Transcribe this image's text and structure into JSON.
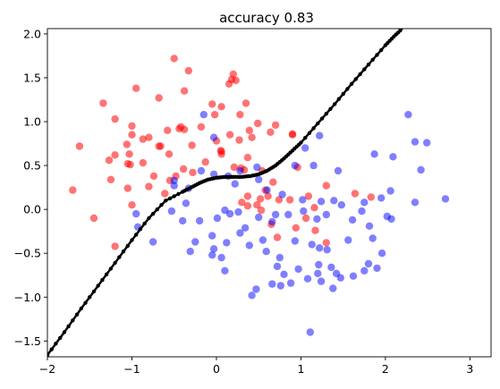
{
  "chart_data": {
    "type": "scatter",
    "title": "accuracy 0.83",
    "xlabel": "",
    "ylabel": "",
    "xlim": [
      -2.0,
      3.25
    ],
    "ylim": [
      -1.68,
      2.06
    ],
    "x_ticks": [
      -2,
      -1,
      0,
      1,
      2,
      3
    ],
    "x_tick_labels": [
      "−2",
      "−1",
      "0",
      "1",
      "2",
      "3"
    ],
    "y_ticks": [
      -1.5,
      -1.0,
      -0.5,
      0.0,
      0.5,
      1.0,
      1.5,
      2.0
    ],
    "y_tick_labels": [
      "−1.5",
      "−1.0",
      "−0.5",
      "0.0",
      "0.5",
      "1.0",
      "1.5",
      "2.0"
    ],
    "grid": false,
    "legend": "none",
    "series": [
      {
        "color": "#ff0000",
        "alpha": 0.55,
        "points": [
          [
            -0.5,
            1.72
          ],
          [
            -0.33,
            1.58
          ],
          [
            0.2,
            1.54
          ],
          [
            0.18,
            1.48
          ],
          [
            0.23,
            1.47
          ],
          [
            0.15,
            1.43
          ],
          [
            -0.95,
            1.38
          ],
          [
            -0.38,
            1.35
          ],
          [
            -0.68,
            1.27
          ],
          [
            -1.34,
            1.21
          ],
          [
            -0.05,
            1.2
          ],
          [
            0.35,
            1.21
          ],
          [
            0.06,
            1.17
          ],
          [
            0.28,
            1.08
          ],
          [
            -0.02,
            1.08
          ],
          [
            -1.2,
            1.03
          ],
          [
            -0.42,
            0.94
          ],
          [
            -1.0,
            0.95
          ],
          [
            -0.58,
            0.9
          ],
          [
            -0.8,
            0.82
          ],
          [
            -0.87,
            0.8
          ],
          [
            -1.06,
            0.74
          ],
          [
            -0.68,
            0.72
          ],
          [
            -0.38,
            0.91
          ],
          [
            -0.44,
            0.92
          ],
          [
            -0.18,
            0.94
          ],
          [
            -1.0,
            0.85
          ],
          [
            0.16,
            0.85
          ],
          [
            0.42,
            0.82
          ],
          [
            0.27,
            0.79
          ],
          [
            0.49,
            0.98
          ],
          [
            0.9,
            0.85
          ],
          [
            -0.0,
            0.78
          ],
          [
            0.06,
            0.66
          ],
          [
            0.37,
            0.59
          ],
          [
            0.33,
            0.45
          ],
          [
            0.21,
            0.48
          ],
          [
            0.39,
            0.9
          ],
          [
            -1.27,
            0.56
          ],
          [
            -1.2,
            0.62
          ],
          [
            -1.02,
            0.51
          ],
          [
            -1.05,
            0.52
          ],
          [
            -0.87,
            0.53
          ],
          [
            -0.56,
            0.63
          ],
          [
            -0.66,
            0.72
          ],
          [
            -1.03,
            0.63
          ],
          [
            -0.29,
            0.73
          ],
          [
            -0.13,
            0.54
          ],
          [
            0.06,
            0.63
          ],
          [
            0.05,
            0.67
          ],
          [
            0.64,
            0.88
          ],
          [
            0.7,
            0.96
          ],
          [
            0.9,
            0.86
          ],
          [
            0.29,
            0.47
          ],
          [
            0.54,
            0.44
          ],
          [
            0.61,
            0.15
          ],
          [
            0.37,
            0.04
          ],
          [
            0.48,
            0.05
          ],
          [
            0.52,
            0.12
          ],
          [
            0.37,
            0.15
          ],
          [
            0.3,
            0.08
          ],
          [
            0.96,
            0.48
          ],
          [
            0.87,
            0.11
          ],
          [
            0.74,
            0.11
          ],
          [
            0.67,
            0.31
          ],
          [
            -0.55,
            0.33
          ],
          [
            -0.39,
            0.46
          ],
          [
            -0.48,
            0.38
          ],
          [
            -0.28,
            0.42
          ],
          [
            -0.74,
            0.38
          ],
          [
            -0.8,
            0.26
          ],
          [
            -0.61,
            0.18
          ],
          [
            -1.0,
            0.05
          ],
          [
            -1.25,
            0.34
          ],
          [
            -1.62,
            0.72
          ],
          [
            -1.7,
            0.22
          ],
          [
            -1.45,
            -0.1
          ],
          [
            -1.2,
            -0.42
          ],
          [
            -1.05,
            0.24
          ],
          [
            0.65,
            -0.17
          ],
          [
            0.72,
            -0.32
          ],
          [
            0.94,
            -0.21
          ],
          [
            1.06,
            -0.1
          ],
          [
            1.17,
            -0.24
          ],
          [
            1.3,
            -0.38
          ],
          [
            1.09,
            0.15
          ],
          [
            1.16,
            0.02
          ],
          [
            1.3,
            0.27
          ],
          [
            1.64,
            0.18
          ],
          [
            1.83,
            0.14
          ],
          [
            0.53,
            -0.01
          ],
          [
            0.58,
            0.22
          ]
        ]
      },
      {
        "color": "#0000ff",
        "alpha": 0.5,
        "points": [
          [
            -0.15,
            1.08
          ],
          [
            -0.03,
            0.82
          ],
          [
            1.22,
            0.84
          ],
          [
            1.05,
            0.7
          ],
          [
            2.27,
            1.08
          ],
          [
            2.35,
            0.77
          ],
          [
            2.49,
            0.76
          ],
          [
            1.87,
            0.63
          ],
          [
            2.09,
            0.6
          ],
          [
            2.42,
            0.45
          ],
          [
            1.44,
            0.44
          ],
          [
            1.15,
            0.5
          ],
          [
            0.93,
            0.5
          ],
          [
            0.48,
            0.48
          ],
          [
            0.28,
            0.44
          ],
          [
            0.14,
            0.38
          ],
          [
            -0.18,
            0.44
          ],
          [
            -0.5,
            0.33
          ],
          [
            -0.03,
            0.4
          ],
          [
            -0.33,
            0.24
          ],
          [
            -0.5,
            0.27
          ],
          [
            0.22,
            0.29
          ],
          [
            0.6,
            0.22
          ],
          [
            0.78,
            0.17
          ],
          [
            1.02,
            0.11
          ],
          [
            1.24,
            0.09
          ],
          [
            1.39,
            0.1
          ],
          [
            1.48,
            0.05
          ],
          [
            1.75,
            0.08
          ],
          [
            1.95,
            0.13
          ],
          [
            2.06,
            0.21
          ],
          [
            2.35,
            0.08
          ],
          [
            2.71,
            0.12
          ],
          [
            -0.36,
            0.07
          ],
          [
            -0.53,
            -0.02
          ],
          [
            -0.95,
            -0.05
          ],
          [
            -0.93,
            -0.2
          ],
          [
            -0.75,
            -0.37
          ],
          [
            -0.4,
            -0.13
          ],
          [
            -0.2,
            -0.13
          ],
          [
            0.01,
            -0.1
          ],
          [
            0.1,
            -0.01
          ],
          [
            0.16,
            -0.05
          ],
          [
            0.26,
            -0.03
          ],
          [
            0.34,
            -0.21
          ],
          [
            0.5,
            -0.09
          ],
          [
            0.7,
            -0.06
          ],
          [
            0.85,
            -0.06
          ],
          [
            1.03,
            -0.02
          ],
          [
            1.19,
            -0.11
          ],
          [
            1.3,
            -0.06
          ],
          [
            1.61,
            -0.12
          ],
          [
            1.72,
            -0.02
          ],
          [
            1.81,
            -0.19
          ],
          [
            1.85,
            -0.33
          ],
          [
            2.02,
            -0.08
          ],
          [
            2.07,
            -0.11
          ],
          [
            -0.05,
            -0.3
          ],
          [
            0.12,
            -0.38
          ],
          [
            0.28,
            -0.27
          ],
          [
            0.39,
            -0.41
          ],
          [
            0.55,
            -0.35
          ],
          [
            0.59,
            -0.48
          ],
          [
            0.75,
            -0.55
          ],
          [
            0.93,
            -0.36
          ],
          [
            1.13,
            -0.4
          ],
          [
            1.22,
            -0.44
          ],
          [
            1.31,
            -0.46
          ],
          [
            1.56,
            -0.35
          ],
          [
            0.06,
            -0.55
          ],
          [
            -0.25,
            -0.37
          ],
          [
            -0.31,
            -0.48
          ],
          [
            -0.05,
            -0.52
          ],
          [
            0.72,
            -0.65
          ],
          [
            0.97,
            -0.68
          ],
          [
            1.08,
            -0.79
          ],
          [
            1.21,
            -0.63
          ],
          [
            1.36,
            -0.66
          ],
          [
            1.42,
            -0.73
          ],
          [
            1.24,
            -0.82
          ],
          [
            1.8,
            -0.62
          ],
          [
            1.96,
            -0.5
          ],
          [
            1.75,
            -0.7
          ],
          [
            1.9,
            -0.67
          ],
          [
            0.8,
            -0.74
          ],
          [
            0.88,
            -0.84
          ],
          [
            1.47,
            -0.78
          ],
          [
            1.62,
            -0.76
          ],
          [
            0.76,
            -0.87
          ],
          [
            0.66,
            -0.85
          ],
          [
            1.2,
            -0.73
          ],
          [
            1.38,
            -0.9
          ],
          [
            0.47,
            -0.91
          ],
          [
            0.42,
            -0.98
          ],
          [
            0.1,
            -0.7
          ],
          [
            1.11,
            -1.4
          ],
          [
            -0.03,
            -0.45
          ],
          [
            0.66,
            -0.14
          ],
          [
            0.5,
            0.34
          ]
        ]
      }
    ],
    "boundary": {
      "color": "#000000",
      "x": [
        -2.0,
        -1.8,
        -1.6,
        -1.4,
        -1.2,
        -1.0,
        -0.8,
        -0.6,
        -0.4,
        -0.3,
        -0.2,
        -0.1,
        0.0,
        0.1,
        0.2,
        0.3,
        0.4,
        0.5,
        0.6,
        0.7,
        0.8,
        0.9,
        1.0,
        1.2,
        1.4,
        1.6,
        1.8,
        2.0,
        2.1,
        2.2
      ],
      "y": [
        -1.66,
        -1.4,
        -1.13,
        -0.87,
        -0.61,
        -0.35,
        -0.1,
        0.1,
        0.2,
        0.25,
        0.3,
        0.34,
        0.36,
        0.37,
        0.37,
        0.37,
        0.38,
        0.4,
        0.44,
        0.5,
        0.58,
        0.67,
        0.76,
        0.98,
        1.2,
        1.43,
        1.65,
        1.87,
        1.97,
        2.06
      ]
    }
  }
}
